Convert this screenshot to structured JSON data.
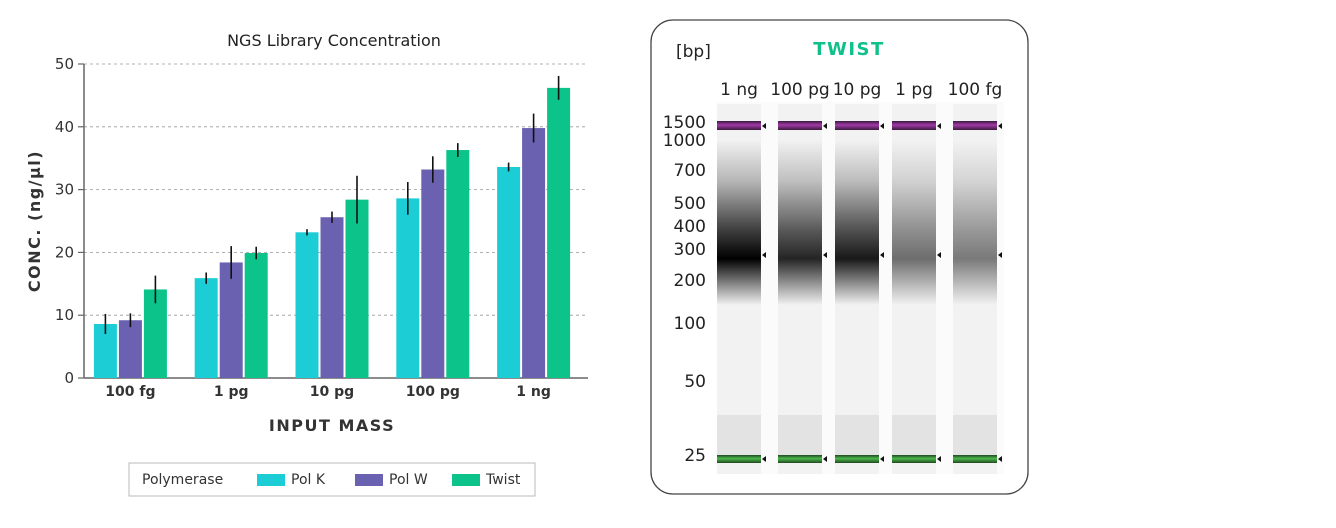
{
  "chart_data": [
    {
      "type": "bar",
      "title": "NGS Library Concentration",
      "xlabel": "INPUT MASS",
      "ylabel": "CONC. (ng/µl)",
      "ylim": [
        0,
        50
      ],
      "yticks": [
        0,
        10,
        20,
        30,
        40,
        50
      ],
      "grid": "horizontal dashed",
      "categories": [
        "100 fg",
        "1 pg",
        "10 pg",
        "100 pg",
        "1 ng"
      ],
      "legend": {
        "title": "Polymerase",
        "placement": "bottom"
      },
      "series": [
        {
          "name": "Pol K",
          "color": "#1ccdd6",
          "values": [
            8.6,
            15.9,
            23.2,
            28.6,
            33.6
          ],
          "errors": [
            1.6,
            0.9,
            0.5,
            2.6,
            0.7
          ]
        },
        {
          "name": "Pol W",
          "color": "#6a62b0",
          "values": [
            9.2,
            18.4,
            25.6,
            33.2,
            39.8
          ],
          "errors": [
            1.1,
            2.6,
            0.9,
            2.1,
            2.3
          ]
        },
        {
          "name": "Twist",
          "color": "#0cc38a",
          "values": [
            14.1,
            19.9,
            28.4,
            36.3,
            46.2
          ],
          "errors": [
            2.2,
            1.0,
            3.8,
            1.1,
            1.9
          ]
        }
      ]
    },
    {
      "type": "gel",
      "title": "TWIST",
      "title_color": "#10c08a",
      "unit_label": "[bp]",
      "ladder": [
        "1500",
        "1000",
        "700",
        "500",
        "400",
        "300",
        "200",
        "100",
        "50",
        "25"
      ],
      "lanes": [
        {
          "label": "1 ng",
          "smear_intensity": 1.0
        },
        {
          "label": "100 pg",
          "smear_intensity": 0.85
        },
        {
          "label": "10 pg",
          "smear_intensity": 0.9
        },
        {
          "label": "1 pg",
          "smear_intensity": 0.55
        },
        {
          "label": "100 fg",
          "smear_intensity": 0.5
        }
      ],
      "marker_colors": {
        "upper": "#8a2a8e",
        "lower": "#3a9a3a"
      }
    }
  ]
}
